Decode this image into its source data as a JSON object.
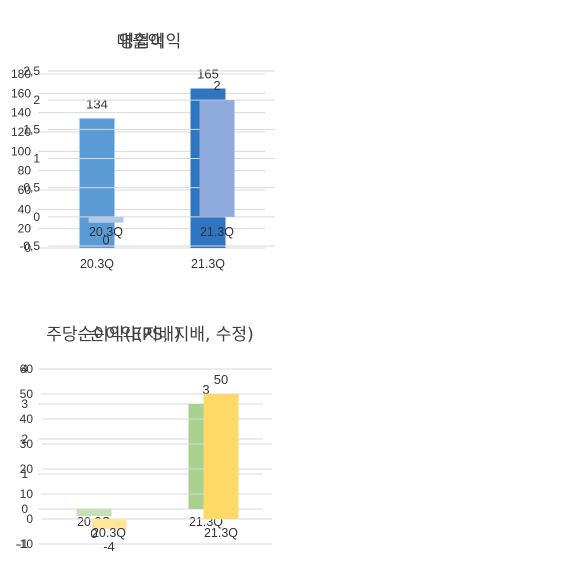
{
  "chart_data": [
    {
      "type": "bar",
      "title": "매출액",
      "categories": [
        "20.3Q",
        "21.3Q"
      ],
      "values": [
        134,
        165
      ],
      "value_labels": [
        "134",
        "165"
      ],
      "ylim": [
        0,
        180
      ],
      "yticks": [
        0,
        20,
        40,
        60,
        80,
        100,
        120,
        140,
        160,
        180
      ],
      "ytick_labels": [
        "0",
        "20",
        "40",
        "60",
        "80",
        "100",
        "120",
        "140",
        "160",
        "180"
      ],
      "colors": [
        "#5b9bd5",
        "#2e75c2"
      ],
      "grid": true,
      "legend": "none"
    },
    {
      "type": "bar",
      "title": "영업이익",
      "categories": [
        "20.3Q",
        "21.3Q"
      ],
      "values": [
        -0.1,
        2
      ],
      "value_labels": [
        "0",
        "2"
      ],
      "ylim": [
        -0.5,
        2.5
      ],
      "yticks": [
        -0.5,
        0,
        0.5,
        1,
        1.5,
        2,
        2.5
      ],
      "ytick_labels": [
        "-0,5",
        "0",
        "0,5",
        "1",
        "1,5",
        "2",
        "2,5"
      ],
      "colors": [
        "#b4c7e7",
        "#8faadc"
      ],
      "grid": true,
      "legend": "none"
    },
    {
      "type": "bar",
      "title": "순이익(지배)",
      "categories": [
        "20.3Q",
        "21.3Q"
      ],
      "values": [
        -0.2,
        3
      ],
      "value_labels": [
        "0",
        "3"
      ],
      "ylim": [
        -1,
        4
      ],
      "yticks": [
        -1,
        0,
        1,
        2,
        3,
        4
      ],
      "ytick_labels": [
        "-1",
        "0",
        "1",
        "2",
        "3",
        "4"
      ],
      "colors": [
        "#c5e0b4",
        "#a9d18e"
      ],
      "grid": true,
      "legend": "none"
    },
    {
      "type": "bar",
      "title": "주당순이익(EPS, 지배, 수정)",
      "categories": [
        "20.3Q",
        "21.3Q"
      ],
      "values": [
        -4,
        50
      ],
      "value_labels": [
        "-4",
        "50"
      ],
      "ylim": [
        -10,
        60
      ],
      "yticks": [
        -10,
        0,
        10,
        20,
        30,
        40,
        50,
        60
      ],
      "ytick_labels": [
        "-10",
        "0",
        "10",
        "20",
        "30",
        "40",
        "50",
        "60"
      ],
      "colors": [
        "#ffe699",
        "#ffd966"
      ],
      "grid": true,
      "legend": "none"
    }
  ]
}
